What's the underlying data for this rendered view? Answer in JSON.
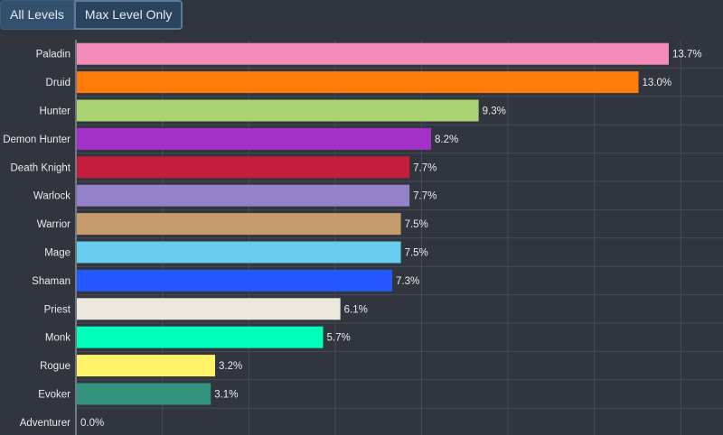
{
  "filters": {
    "all_levels_label": "All Levels",
    "max_level_label": "Max Level Only",
    "active": "max_level"
  },
  "colors": {
    "background": "#31353e",
    "grid": "#464b55",
    "axis": "#8a8f99",
    "text": "#e8eaee"
  },
  "chart_data": {
    "type": "bar",
    "orientation": "horizontal",
    "title": "",
    "xlabel": "",
    "ylabel": "",
    "xlim": [
      0,
      15
    ],
    "grid": true,
    "value_suffix": "%",
    "categories": [
      "Paladin",
      "Druid",
      "Hunter",
      "Demon Hunter",
      "Death Knight",
      "Warlock",
      "Warrior",
      "Mage",
      "Shaman",
      "Priest",
      "Monk",
      "Rogue",
      "Evoker",
      "Adventurer"
    ],
    "values": [
      13.7,
      13.0,
      9.3,
      8.2,
      7.7,
      7.7,
      7.5,
      7.5,
      7.3,
      6.1,
      5.7,
      3.2,
      3.1,
      0.0
    ],
    "value_labels": [
      "13.7%",
      "13.0%",
      "9.3%",
      "8.2%",
      "7.7%",
      "7.7%",
      "7.5%",
      "7.5%",
      "7.3%",
      "6.1%",
      "5.7%",
      "3.2%",
      "3.1%",
      "0.0%"
    ],
    "bar_colors": [
      "#f48cba",
      "#ff7c0a",
      "#aad372",
      "#a330c9",
      "#c41e3a",
      "#9482c9",
      "#c69b6d",
      "#68ccef",
      "#2359ff",
      "#ede8dd",
      "#00ffba",
      "#fff468",
      "#33937f",
      "#9ea2a8"
    ]
  }
}
